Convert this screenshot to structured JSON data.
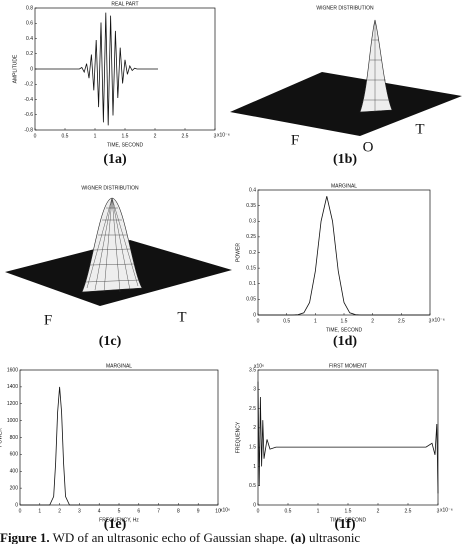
{
  "chart_data": [
    {
      "type": "line",
      "title": "REAL PART",
      "xlabel": "TIME, SECOND",
      "ylabel": "AMPLITUDE",
      "x_exponent": "x10⁻⁶",
      "x": [
        0,
        0.74,
        0.78,
        0.82,
        0.86,
        0.9,
        0.94,
        0.98,
        1.02,
        1.06,
        1.1,
        1.14,
        1.18,
        1.22,
        1.26,
        1.3,
        1.34,
        1.38,
        1.42,
        1.46,
        1.5,
        1.54,
        1.58,
        1.62,
        1.66,
        1.7,
        2.05
      ],
      "values": [
        0,
        0,
        0.02,
        -0.04,
        0.07,
        -0.12,
        0.19,
        -0.28,
        0.38,
        -0.5,
        0.61,
        -0.7,
        0.74,
        -0.74,
        0.7,
        -0.61,
        0.5,
        -0.38,
        0.28,
        -0.19,
        0.12,
        -0.07,
        0.04,
        -0.02,
        0.01,
        0,
        0
      ],
      "xlim": [
        0,
        3
      ],
      "ylim": [
        -0.8,
        0.8
      ],
      "xticks": [
        0,
        0.5,
        1,
        1.5,
        2,
        2.5,
        3
      ],
      "yticks": [
        -0.8,
        -0.6,
        -0.4,
        -0.2,
        0,
        0.2,
        0.4,
        0.6,
        0.8
      ],
      "color": "#111111"
    },
    {
      "type": "line",
      "title": "MARGINAL",
      "xlabel": "TIME, SECOND",
      "ylabel": "POWER",
      "x_exponent": "x10⁻⁶",
      "x": [
        0,
        0.6,
        0.7,
        0.8,
        0.9,
        1.0,
        1.1,
        1.2,
        1.3,
        1.4,
        1.5,
        1.6,
        1.7,
        1.8,
        3
      ],
      "values": [
        0,
        0,
        0.001,
        0.007,
        0.04,
        0.14,
        0.3,
        0.38,
        0.3,
        0.14,
        0.04,
        0.007,
        0.001,
        0,
        0
      ],
      "xlim": [
        0,
        3
      ],
      "ylim": [
        0,
        0.4
      ],
      "xticks": [
        0,
        0.5,
        1,
        1.5,
        2,
        2.5,
        3
      ],
      "yticks": [
        0,
        0.05,
        0.1,
        0.15,
        0.2,
        0.25,
        0.3,
        0.35,
        0.4
      ],
      "color": "#111111"
    },
    {
      "type": "line",
      "title": "MARGINAL",
      "xlabel": "FREQUENCY, Hz",
      "ylabel": "POWER",
      "x_exponent": "x10⁶",
      "x": [
        0,
        1.5,
        1.7,
        1.8,
        1.9,
        2.0,
        2.1,
        2.2,
        2.3,
        2.5,
        10
      ],
      "values": [
        0,
        0,
        100,
        500,
        1100,
        1400,
        1100,
        500,
        100,
        0,
        0
      ],
      "xlim": [
        0,
        10
      ],
      "ylim": [
        0,
        1600
      ],
      "xticks": [
        0,
        1,
        2,
        3,
        4,
        5,
        6,
        7,
        8,
        9,
        10
      ],
      "yticks": [
        0,
        200,
        400,
        600,
        800,
        1000,
        1200,
        1400,
        1600
      ],
      "color": "#111111"
    },
    {
      "type": "line",
      "title": "FIRST MOMENT",
      "xlabel": "TIME, SECOND",
      "ylabel": "FREQUENCY",
      "x_exponent": "x10⁻⁶",
      "y_exponent": "x10⁶",
      "x": [
        0,
        0.02,
        0.04,
        0.06,
        0.08,
        0.1,
        0.15,
        0.2,
        0.3,
        2.8,
        2.9,
        2.95,
        2.98,
        3.0
      ],
      "values": [
        3.2,
        0.5,
        2.8,
        1.0,
        2.2,
        1.2,
        1.7,
        1.45,
        1.5,
        1.5,
        1.6,
        1.3,
        2.1,
        0.3
      ],
      "xlim": [
        0,
        3
      ],
      "ylim": [
        0,
        3.5
      ],
      "xticks": [
        0,
        0.5,
        1,
        1.5,
        2,
        2.5,
        3
      ],
      "yticks": [
        0,
        0.5,
        1,
        1.5,
        2,
        2.5,
        3,
        3.5
      ],
      "color": "#111111"
    }
  ],
  "wigner_plots": [
    {
      "title": "WIGNER DISTRIBUTION",
      "axis_labels": [
        "F",
        "O",
        "T"
      ]
    },
    {
      "title": "WIGNER DISTRIBUTION",
      "axis_labels": [
        "F",
        "T"
      ]
    }
  ],
  "panel_labels": [
    "(1a)",
    "(1b)",
    "(1c)",
    "(1d)",
    "(1e)",
    "(1f)"
  ],
  "caption": {
    "lead": "Figure 1.",
    "text": "WD of an ultrasonic echo of Gaussian shape.",
    "sub": "(a)",
    "rest": "ultrasonic"
  }
}
